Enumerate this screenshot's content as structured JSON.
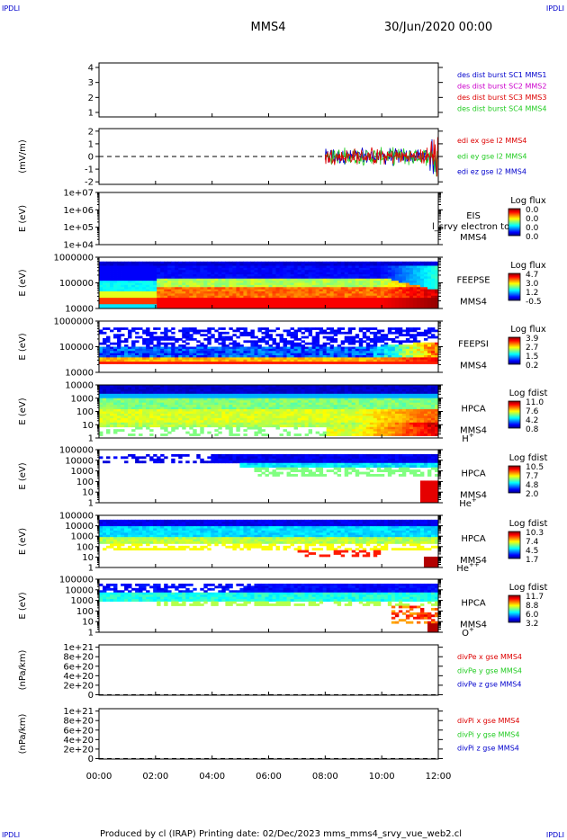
{
  "corners": {
    "tl": "IPDLI",
    "tr": "IPDLI",
    "bl": "IPDLI",
    "br": "IPDLI"
  },
  "header": {
    "spacecraft": "MMS4",
    "datetime": "30/Jun/2020 00:00"
  },
  "footer": {
    "text": "Produced by cl (IRAP)   Printing date: 02/Dec/2023   mms_mms4_srvy_vue_web2.cl"
  },
  "colors": {
    "blue": "#0000cc",
    "magenta": "#cc00cc",
    "red": "#dd0000",
    "green": "#22cc22",
    "black": "#000000"
  },
  "chart_data": [
    {
      "id": "sc",
      "type": "line",
      "ylim": [
        0.7,
        4.3
      ],
      "yticks": [
        {
          "v": 1,
          "l": "1"
        },
        {
          "v": 2,
          "l": "2"
        },
        {
          "v": 3,
          "l": "3"
        },
        {
          "v": 4,
          "l": "4"
        }
      ],
      "legend": [
        {
          "label": "des dist burst SC1 MMS1",
          "color": "#0000cc"
        },
        {
          "label": "des dist burst SC2 MMS2",
          "color": "#cc00cc"
        },
        {
          "label": "des dist burst SC3 MMS3",
          "color": "#dd0000"
        },
        {
          "label": "des dist burst SC4 MMS4",
          "color": "#22cc22"
        }
      ]
    },
    {
      "id": "efield",
      "type": "line",
      "ylabel": "(mV/m)",
      "ylim": [
        -2.2,
        2.2
      ],
      "yticks": [
        {
          "v": -2,
          "l": "-2"
        },
        {
          "v": -1,
          "l": "-1"
        },
        {
          "v": 0,
          "l": "0"
        },
        {
          "v": 1,
          "l": "1"
        },
        {
          "v": 2,
          "l": "2"
        }
      ],
      "zero_line": true,
      "data_start_hour": 8.0,
      "data_end_hour": 12.0,
      "legend": [
        {
          "label": "edi ex gse l2 MMS4",
          "color": "#dd0000"
        },
        {
          "label": "edi ey gse l2 MMS4",
          "color": "#22cc22"
        },
        {
          "label": "edi ez gse l2 MMS4",
          "color": "#0000cc"
        }
      ]
    },
    {
      "id": "eis",
      "type": "heatmap",
      "ylabel": "E (eV)",
      "yscale": "log",
      "ylim": [
        10000,
        10000000
      ],
      "yticks": [
        {
          "v": 10000,
          "l": "1e+04"
        },
        {
          "v": 100000,
          "l": "1e+05"
        },
        {
          "v": 1000000,
          "l": "1e+06"
        },
        {
          "v": 10000000,
          "l": "1e+07"
        }
      ],
      "labels": [
        "EIS",
        "MMS4"
      ],
      "overlay_text": "l_srvy electron to",
      "colorbar": {
        "title": "Log flux",
        "ticks": [
          "0.0",
          "0.0",
          "0.0",
          "0.0"
        ]
      }
    },
    {
      "id": "feepse",
      "type": "heatmap",
      "ylabel": "E (eV)",
      "yscale": "log",
      "ylim": [
        10000,
        1000000
      ],
      "yticks": [
        {
          "v": 10000,
          "l": "10000"
        },
        {
          "v": 100000,
          "l": "100000"
        },
        {
          "v": 1000000,
          "l": "1000000"
        }
      ],
      "labels": [
        "FEEPSE",
        "MMS4"
      ],
      "colorbar": {
        "title": "Log flux",
        "ticks": [
          "4.7",
          "3.0",
          "1.2",
          "-0.5"
        ]
      }
    },
    {
      "id": "feepsi",
      "type": "heatmap",
      "ylabel": "E (eV)",
      "yscale": "log",
      "ylim": [
        10000,
        1000000
      ],
      "yticks": [
        {
          "v": 10000,
          "l": "10000"
        },
        {
          "v": 100000,
          "l": "100000"
        },
        {
          "v": 1000000,
          "l": "1000000"
        }
      ],
      "labels": [
        "FEEPSI",
        "MMS4"
      ],
      "colorbar": {
        "title": "Log flux",
        "ticks": [
          "3.9",
          "2.7",
          "1.5",
          "0.2"
        ]
      }
    },
    {
      "id": "hpca_h",
      "type": "heatmap",
      "ylabel": "E (eV)",
      "yscale": "log",
      "ylim": [
        1,
        10000
      ],
      "yticks": [
        {
          "v": 1,
          "l": "1"
        },
        {
          "v": 10,
          "l": "10"
        },
        {
          "v": 100,
          "l": "100"
        },
        {
          "v": 1000,
          "l": "1000"
        },
        {
          "v": 10000,
          "l": "10000"
        }
      ],
      "labels": [
        "HPCA",
        "MMS4"
      ],
      "species": "H",
      "species_sup": "+",
      "colorbar": {
        "title": "Log fdist",
        "ticks": [
          "11.0",
          "7.6",
          "4.2",
          "0.8"
        ]
      }
    },
    {
      "id": "hpca_he",
      "type": "heatmap",
      "ylabel": "E (eV)",
      "yscale": "log",
      "ylim": [
        1,
        100000
      ],
      "yticks": [
        {
          "v": 1,
          "l": "1"
        },
        {
          "v": 10,
          "l": "10"
        },
        {
          "v": 100,
          "l": "100"
        },
        {
          "v": 1000,
          "l": "1000"
        },
        {
          "v": 10000,
          "l": "10000"
        },
        {
          "v": 100000,
          "l": "100000"
        }
      ],
      "labels": [
        "HPCA",
        "MMS4"
      ],
      "species": "He",
      "species_sup": "+",
      "colorbar": {
        "title": "Log fdist",
        "ticks": [
          "10.5",
          "7.7",
          "4.8",
          "2.0"
        ]
      }
    },
    {
      "id": "hpca_he2",
      "type": "heatmap",
      "ylabel": "E (eV)",
      "yscale": "log",
      "ylim": [
        1,
        100000
      ],
      "yticks": [
        {
          "v": 1,
          "l": "1"
        },
        {
          "v": 10,
          "l": "10"
        },
        {
          "v": 100,
          "l": "100"
        },
        {
          "v": 1000,
          "l": "1000"
        },
        {
          "v": 10000,
          "l": "10000"
        },
        {
          "v": 100000,
          "l": "100000"
        }
      ],
      "labels": [
        "HPCA",
        "MMS4"
      ],
      "species": "He",
      "species_sup": "++",
      "colorbar": {
        "title": "Log fdist",
        "ticks": [
          "10.3",
          "7.4",
          "4.5",
          "1.7"
        ]
      }
    },
    {
      "id": "hpca_o",
      "type": "heatmap",
      "ylabel": "E (eV)",
      "yscale": "log",
      "ylim": [
        1,
        100000
      ],
      "yticks": [
        {
          "v": 1,
          "l": "1"
        },
        {
          "v": 10,
          "l": "10"
        },
        {
          "v": 100,
          "l": "100"
        },
        {
          "v": 1000,
          "l": "1000"
        },
        {
          "v": 10000,
          "l": "10000"
        },
        {
          "v": 100000,
          "l": "100000"
        }
      ],
      "labels": [
        "HPCA",
        "MMS4"
      ],
      "species": "O",
      "species_sup": "+",
      "colorbar": {
        "title": "Log fdist",
        "ticks": [
          "11.7",
          "8.8",
          "6.0",
          "3.2"
        ]
      }
    },
    {
      "id": "divpe",
      "type": "line",
      "ylabel": "(nPa/km)",
      "ylim": [
        -1e+19,
        1.05e+21
      ],
      "yticks": [
        {
          "v": 0,
          "l": "0"
        },
        {
          "v": 2e+20,
          "l": "2e+20"
        },
        {
          "v": 4e+20,
          "l": "4e+20"
        },
        {
          "v": 6e+20,
          "l": "6e+20"
        },
        {
          "v": 8e+20,
          "l": "8e+20"
        },
        {
          "v": 1e+21,
          "l": "1e+21"
        }
      ],
      "zero_line": true,
      "legend": [
        {
          "label": "divPe x gse MMS4",
          "color": "#dd0000"
        },
        {
          "label": "divPe y gse MMS4",
          "color": "#22cc22"
        },
        {
          "label": "divPe z gse MMS4",
          "color": "#0000cc"
        }
      ]
    },
    {
      "id": "divpi",
      "type": "line",
      "ylabel": "(nPa/km)",
      "ylim": [
        -1e+19,
        1.05e+21
      ],
      "yticks": [
        {
          "v": 0,
          "l": "0"
        },
        {
          "v": 2e+20,
          "l": "2e+20"
        },
        {
          "v": 4e+20,
          "l": "4e+20"
        },
        {
          "v": 6e+20,
          "l": "6e+20"
        },
        {
          "v": 8e+20,
          "l": "8e+20"
        },
        {
          "v": 1e+21,
          "l": "1e+21"
        }
      ],
      "zero_line": true,
      "legend": [
        {
          "label": "divPi x gse MMS4",
          "color": "#dd0000"
        },
        {
          "label": "divPi y gse MMS4",
          "color": "#22cc22"
        },
        {
          "label": "divPi z gse MMS4",
          "color": "#0000cc"
        }
      ]
    }
  ],
  "xaxis": {
    "ticks": [
      "00:00",
      "02:00",
      "04:00",
      "06:00",
      "08:00",
      "10:00",
      "12:00"
    ],
    "xlim_hours": [
      0,
      12
    ]
  }
}
